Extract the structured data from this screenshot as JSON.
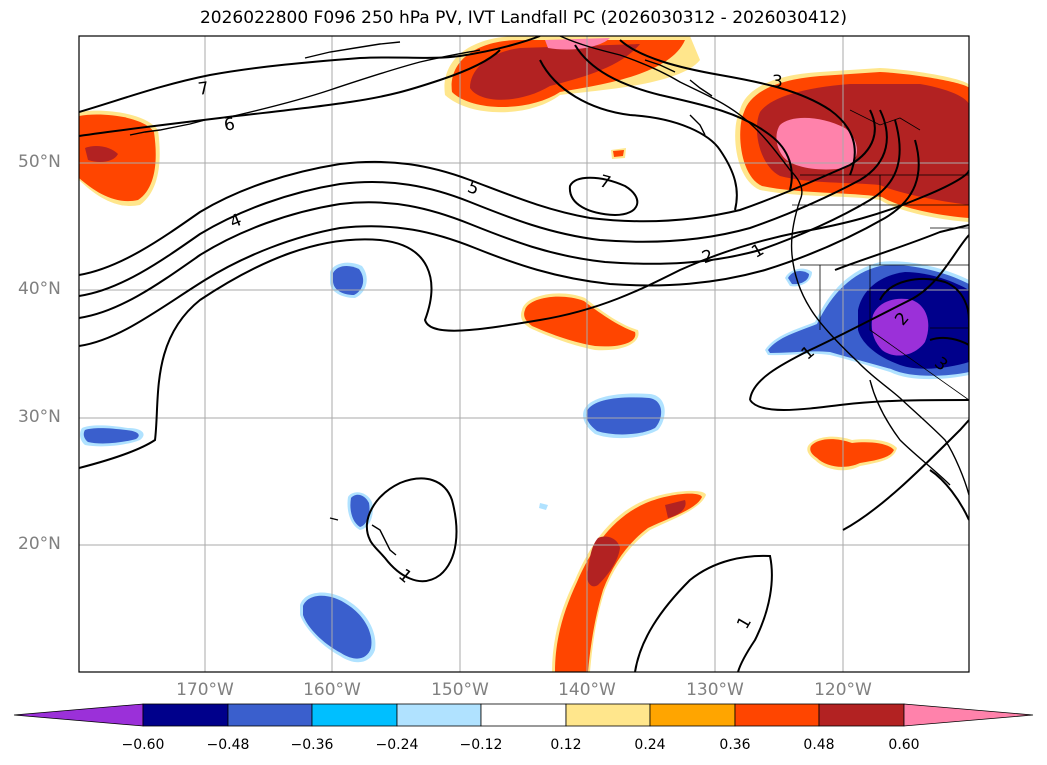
{
  "title": "2026022800 F096 250 hPa PV, IVT Landfall PC (2026030312 - 2026030412)",
  "lat_labels": [
    "50°N",
    "40°N",
    "30°N",
    "20°N"
  ],
  "lon_labels": [
    "170°W",
    "160°W",
    "150°W",
    "140°W",
    "130°W",
    "120°W"
  ],
  "contour_labels": [
    "7",
    "6",
    "4",
    "5",
    "7",
    "3",
    "2",
    "1",
    "1",
    "2",
    "3",
    "1",
    "1"
  ],
  "colorbar": {
    "tick_labels": [
      "−0.60",
      "−0.48",
      "−0.36",
      "−0.24",
      "−0.12",
      "0.12",
      "0.24",
      "0.36",
      "0.48",
      "0.60"
    ],
    "colors": [
      "#9b30d9",
      "#00008b",
      "#3a5fcd",
      "#00bfff",
      "#b0e2ff",
      "#ffffff",
      "#ffe68c",
      "#ffa500",
      "#ff4500",
      "#b22222",
      "#ff82ab"
    ]
  },
  "field_colors": {
    "pos1": "#ffe68c",
    "pos2": "#ffa500",
    "pos3": "#ff4500",
    "pos4": "#b22222",
    "pos5": "#ff82ab",
    "neg1": "#b0e2ff",
    "neg2": "#00bfff",
    "neg3": "#3a5fcd",
    "neg4": "#00008b",
    "neg5": "#9b30d9"
  }
}
